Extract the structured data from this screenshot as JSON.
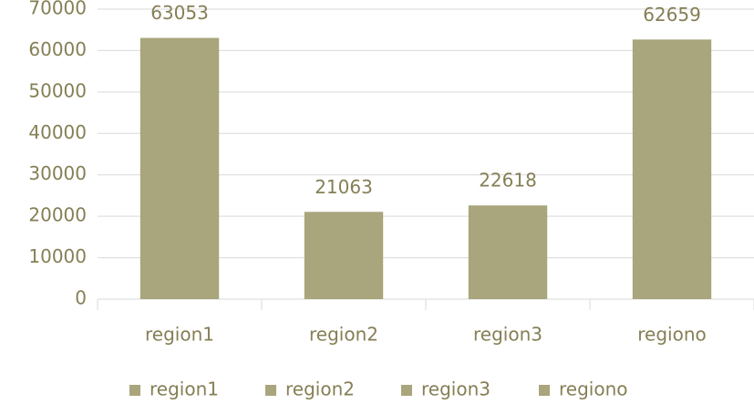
{
  "chart_data": {
    "type": "bar",
    "categories": [
      "region1",
      "region2",
      "region3",
      "regiono"
    ],
    "values": [
      63053,
      21063,
      22618,
      62659
    ],
    "color": "#a9a57c",
    "ylim": [
      0,
      70000
    ],
    "yticks": [
      0,
      10000,
      20000,
      30000,
      40000,
      50000,
      60000,
      70000
    ],
    "grid": true,
    "legend": "bottom"
  }
}
